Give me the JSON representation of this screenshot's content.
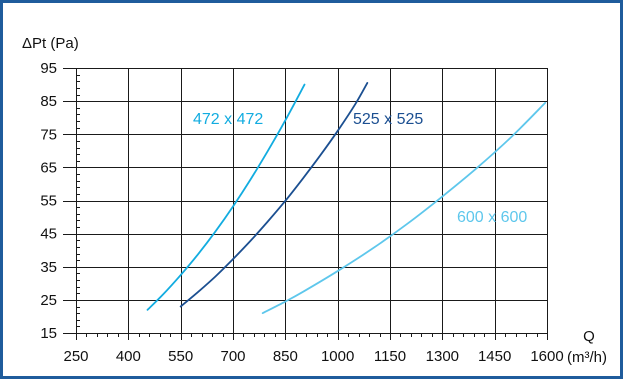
{
  "colors": {
    "frame": "#1f5c9c",
    "grid": "#1a1a1a"
  },
  "chart_data": {
    "type": "line",
    "ylabel": "ΔPt (Pa)",
    "xlabel": "Q",
    "xlabel_unit": "(m³/h)",
    "xlim": [
      250,
      1600
    ],
    "ylim": [
      15,
      95
    ],
    "x_ticks": [
      250,
      400,
      550,
      700,
      850,
      1000,
      1150,
      1300,
      1450,
      1600
    ],
    "y_ticks": [
      15,
      25,
      35,
      45,
      55,
      65,
      75,
      85,
      95
    ],
    "grid": true,
    "series": [
      {
        "name": "472 x 472",
        "color": "#12ace0",
        "points": [
          [
            455,
            22
          ],
          [
            500,
            26.7
          ],
          [
            550,
            32.5
          ],
          [
            600,
            38.8
          ],
          [
            650,
            45.7
          ],
          [
            700,
            53.2
          ],
          [
            750,
            61.3
          ],
          [
            800,
            70.0
          ],
          [
            850,
            79.2
          ],
          [
            905,
            90.0
          ]
        ]
      },
      {
        "name": "525 x 525",
        "color": "#1b4f91",
        "points": [
          [
            550,
            23
          ],
          [
            600,
            27.4
          ],
          [
            650,
            32.1
          ],
          [
            700,
            37.3
          ],
          [
            750,
            42.8
          ],
          [
            800,
            48.7
          ],
          [
            850,
            54.9
          ],
          [
            900,
            61.6
          ],
          [
            950,
            68.6
          ],
          [
            1000,
            76.0
          ],
          [
            1050,
            84.0
          ],
          [
            1085,
            90.5
          ]
        ]
      },
      {
        "name": "600 x 600",
        "color": "#5ec7ec",
        "points": [
          [
            785,
            21
          ],
          [
            850,
            24.5
          ],
          [
            900,
            27.4
          ],
          [
            1000,
            33.7
          ],
          [
            1100,
            40.5
          ],
          [
            1200,
            48.0
          ],
          [
            1300,
            56.2
          ],
          [
            1400,
            64.9
          ],
          [
            1500,
            74.4
          ],
          [
            1595,
            84.5
          ]
        ]
      }
    ]
  }
}
